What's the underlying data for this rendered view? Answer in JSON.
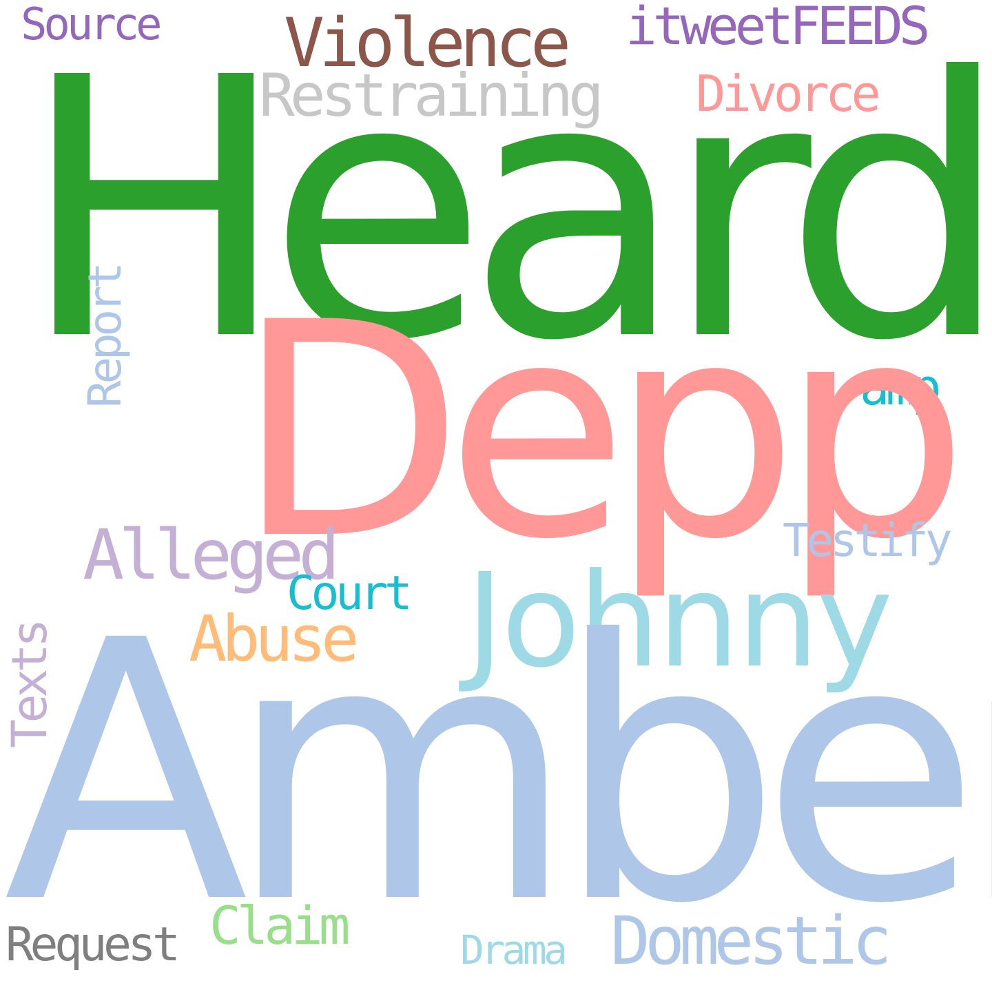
{
  "words": {
    "heard": {
      "text": "Heard",
      "color": "#2ca02c"
    },
    "depp": {
      "text": "Depp",
      "color": "#ff9896"
    },
    "amber": {
      "text": "Amber",
      "color": "#aec7e8"
    },
    "johnny": {
      "text": "Johnny",
      "color": "#9edae5"
    },
    "violence": {
      "text": "Violence",
      "color": "#8c564b"
    },
    "itweet": {
      "text": "itweetFEEDS",
      "color": "#9467bd"
    },
    "source": {
      "text": "Source",
      "color": "#9467bd"
    },
    "restr": {
      "text": "Restraining",
      "color": "#c7c7c7"
    },
    "divorce": {
      "text": "Divorce",
      "color": "#ff9896"
    },
    "amp": {
      "text": "amp",
      "color": "#17becf"
    },
    "report": {
      "text": "Report",
      "color": "#aec7e8"
    },
    "alleged": {
      "text": "Alleged",
      "color": "#c5b0d5"
    },
    "testify": {
      "text": "Testify",
      "color": "#aec7e8"
    },
    "court": {
      "text": "Court",
      "color": "#17becf"
    },
    "abuse": {
      "text": "Abuse",
      "color": "#ffbb78"
    },
    "texts": {
      "text": "Texts",
      "color": "#c5b0d5"
    },
    "claim": {
      "text": "Claim",
      "color": "#98df8a"
    },
    "request": {
      "text": "Request",
      "color": "#7f7f7f"
    },
    "drama": {
      "text": "Drama",
      "color": "#9edae5"
    },
    "domestic": {
      "text": "Domestic",
      "color": "#aec7e8"
    }
  }
}
